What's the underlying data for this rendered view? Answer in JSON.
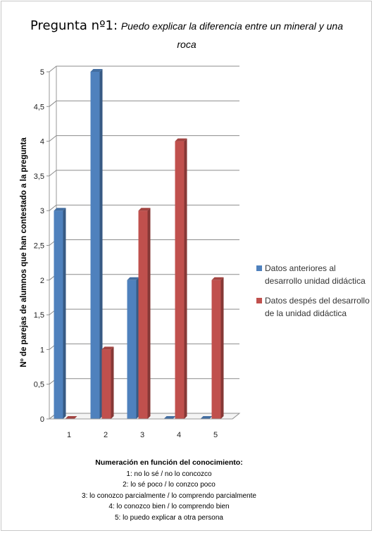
{
  "title": {
    "lead": "Pregunta nº1:",
    "question": "Puedo explicar la diferencia entre un mineral y una roca"
  },
  "chart_data": {
    "type": "bar",
    "categories": [
      "1",
      "2",
      "3",
      "4",
      "5"
    ],
    "series": [
      {
        "name": "Datos anteriores al desarrollo unidad didáctica",
        "values": [
          3,
          5,
          2,
          0,
          0
        ],
        "color": "#4f81bd"
      },
      {
        "name": "Datos despés del desarrollo de la unidad didáctica",
        "values": [
          0,
          1,
          3,
          4,
          2
        ],
        "color": "#c0504d"
      }
    ],
    "ylabel": "Nº de parejas de alumnos  que han contestado a la pregunta",
    "xlabel": "",
    "ylim": [
      0,
      5
    ],
    "yticks": [
      "0",
      "0,5",
      "1",
      "1,5",
      "2",
      "2,5",
      "3",
      "3,5",
      "4",
      "4,5",
      "5"
    ],
    "grid": true,
    "legend_position": "right"
  },
  "notes": {
    "heading": "Numeración en función del conocimiento:",
    "lines": [
      "1: no lo sé / no lo concozco",
      "2: lo sé poco / lo conzco poco",
      "3: lo conozco parcialmente / lo comprendo parcialmente",
      "4: lo conozco bien / lo comprendo bien",
      "5: lo puedo explicar a otra persona"
    ]
  }
}
